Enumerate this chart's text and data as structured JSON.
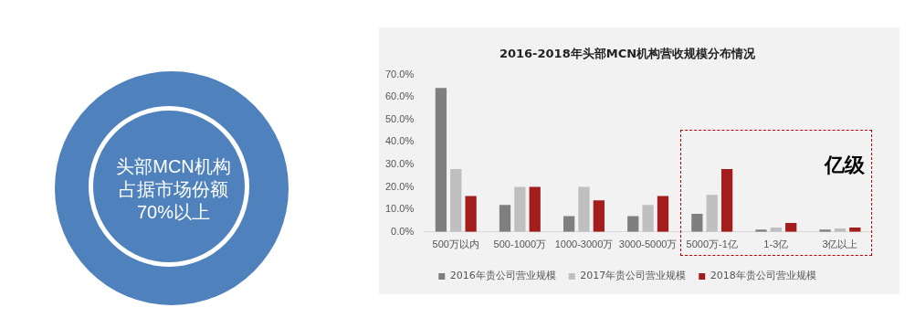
{
  "chart_data": {
    "type": "bar",
    "title": "2016-2018年头部MCN机构营收规模分布情况",
    "categories": [
      "500万以内",
      "500-1000万",
      "1000-3000万",
      "3000-5000万",
      "5000万-1亿",
      "1-3亿",
      "3亿以上"
    ],
    "series": [
      {
        "name": "2016年贵公司营业规模",
        "color": "#7f7f7f",
        "values": [
          64,
          12,
          7,
          7,
          8,
          1,
          1
        ]
      },
      {
        "name": "2017年贵公司营业规模",
        "color": "#bfbfbf",
        "values": [
          28,
          20,
          20,
          12,
          16.5,
          2,
          1.5
        ]
      },
      {
        "name": "2018年贵公司营业规模",
        "color": "#a31d1d",
        "values": [
          16,
          20,
          14,
          16,
          28,
          4,
          2
        ]
      }
    ],
    "ylim": [
      0,
      70
    ],
    "yticks": [
      {
        "value": 0,
        "label": "0.0%"
      },
      {
        "value": 10,
        "label": "10.0%"
      },
      {
        "value": 20,
        "label": "20.0%"
      },
      {
        "value": 30,
        "label": "30.0%"
      },
      {
        "value": 40,
        "label": "40.0%"
      },
      {
        "value": 50,
        "label": "50.0%"
      },
      {
        "value": 60,
        "label": "60.0%"
      },
      {
        "value": 70,
        "label": "70.0%"
      }
    ],
    "grid": false,
    "legend": "bottom",
    "annotations": [
      "头部MCN机构占据市场份额70%以上",
      "亿级"
    ]
  }
}
